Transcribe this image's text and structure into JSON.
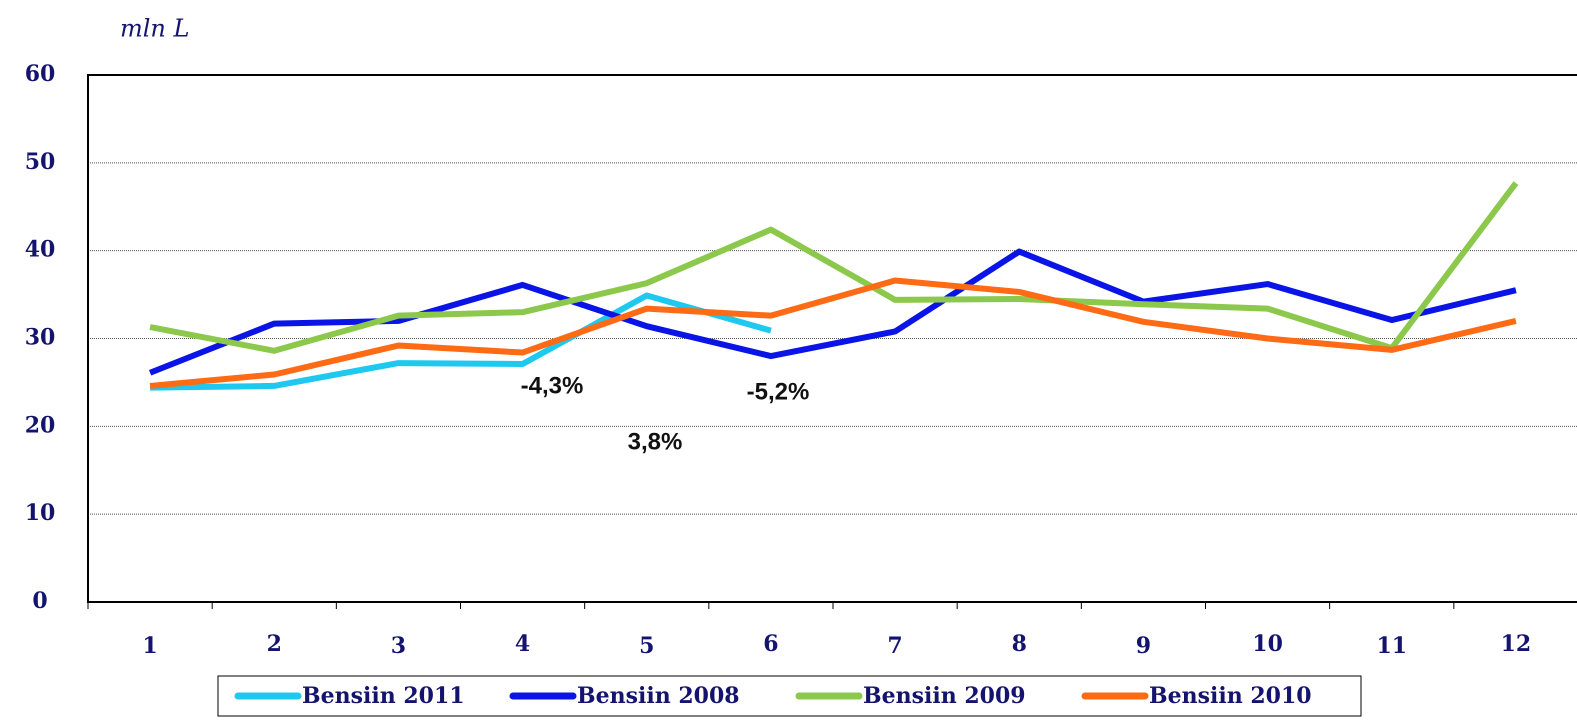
{
  "chart_data": {
    "type": "line",
    "y_label": "mln L",
    "categories": [
      "1",
      "2",
      "3",
      "4",
      "5",
      "6",
      "7",
      "8",
      "9",
      "10",
      "11",
      "12"
    ],
    "series": [
      {
        "name": "Bensiin 2011",
        "color": "#1fc8ef",
        "values": [
          24.4,
          24.6,
          27.2,
          27.1,
          34.9,
          30.9,
          null,
          null,
          null,
          null,
          null,
          null
        ]
      },
      {
        "name": "Bensiin 2008",
        "color": "#0a14e6",
        "values": [
          26.1,
          31.7,
          32.0,
          36.1,
          31.4,
          28.0,
          30.8,
          39.9,
          34.2,
          36.2,
          32.1,
          35.5
        ]
      },
      {
        "name": "Bensiin 2009",
        "color": "#8cc84b",
        "values": [
          31.3,
          28.6,
          32.6,
          33.0,
          36.3,
          42.4,
          34.4,
          34.5,
          33.9,
          33.4,
          28.9,
          47.7
        ]
      },
      {
        "name": "Bensiin 2010",
        "color": "#ff6a14",
        "values": [
          24.6,
          25.9,
          29.2,
          28.4,
          33.4,
          32.6,
          36.6,
          35.3,
          31.9,
          30.0,
          28.7,
          32.0
        ]
      }
    ],
    "annotations": [
      "-4,3%",
      "3,8%",
      "-5,2%"
    ],
    "ylim": [
      0,
      60
    ],
    "yticks": [
      0,
      10,
      20,
      30,
      40,
      50,
      60
    ],
    "grid": true
  }
}
